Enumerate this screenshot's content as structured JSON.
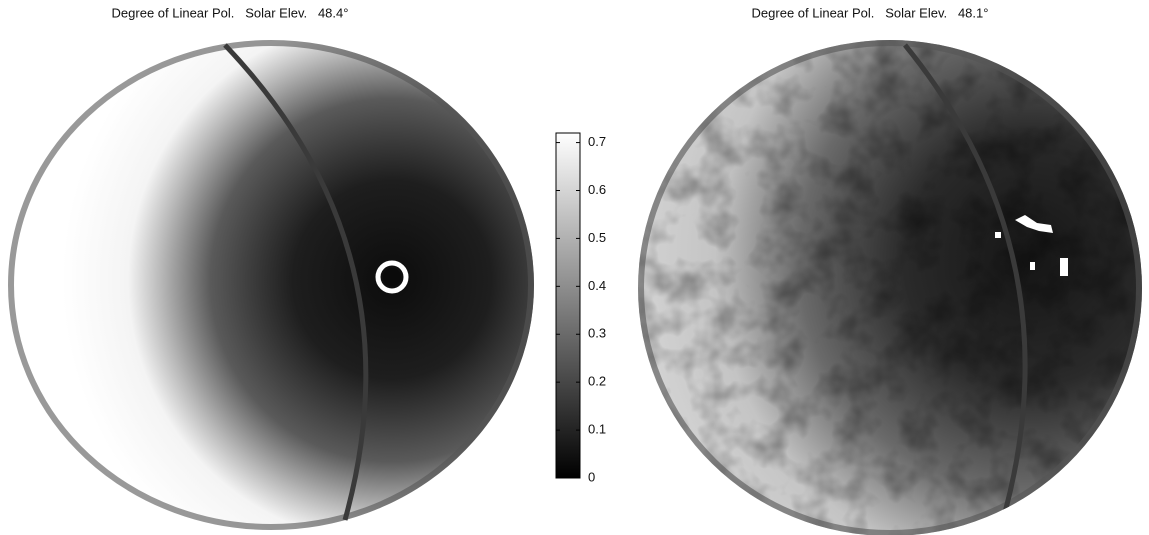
{
  "panels": [
    {
      "title": "Degree of Linear Pol.   Solar Elev.   48.4°"
    },
    {
      "title": "Degree of Linear Pol.   Solar Elev.   48.1°"
    }
  ],
  "colorbar": {
    "lim": [
      0,
      0.72
    ],
    "ticks": [
      0,
      0.1,
      0.2,
      0.3,
      0.4,
      0.5,
      0.6,
      0.7
    ]
  }
}
